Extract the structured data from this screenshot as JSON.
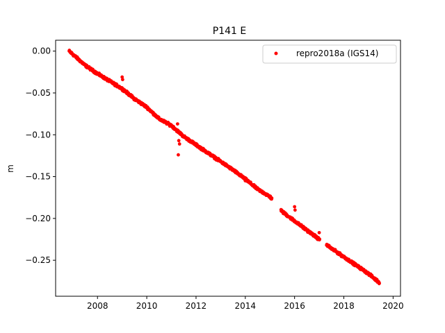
{
  "chart_data": {
    "type": "scatter",
    "title": "P141 E",
    "xlabel": "",
    "ylabel": "m",
    "xlim": [
      2006.3,
      2020.3
    ],
    "ylim": [
      -0.293,
      0.013
    ],
    "xticks": [
      2008,
      2010,
      2012,
      2014,
      2016,
      2018,
      2020
    ],
    "xtick_labels": [
      "2008",
      "2010",
      "2012",
      "2014",
      "2016",
      "2018",
      "2020"
    ],
    "yticks": [
      0.0,
      -0.05,
      -0.1,
      -0.15,
      -0.2,
      -0.25
    ],
    "ytick_labels": [
      "0.00",
      "−0.05",
      "−0.10",
      "−0.15",
      "−0.20",
      "−0.25"
    ],
    "grid": false,
    "legend_position": "top-right",
    "series": [
      {
        "name": "repro2018a (IGS14)",
        "color": "#ff0000",
        "marker": "circle",
        "trend": {
          "x": [
            2006.85,
            2007.5,
            2008.0,
            2008.5,
            2009.0,
            2009.5,
            2010.0,
            2010.5,
            2011.0,
            2011.5,
            2012.0,
            2012.5,
            2013.0,
            2013.5,
            2014.0,
            2014.5,
            2015.0,
            2015.5,
            2016.0,
            2016.5,
            2017.0,
            2017.5,
            2018.0,
            2018.5,
            2019.0,
            2019.45
          ],
          "y": [
            0.0,
            -0.017,
            -0.027,
            -0.036,
            -0.045,
            -0.057,
            -0.067,
            -0.081,
            -0.089,
            -0.102,
            -0.112,
            -0.122,
            -0.132,
            -0.142,
            -0.153,
            -0.165,
            -0.174,
            -0.192,
            -0.203,
            -0.214,
            -0.225,
            -0.236,
            -0.246,
            -0.256,
            -0.266,
            -0.277
          ]
        },
        "gaps": [
          [
            2015.08,
            2015.45
          ],
          [
            2017.02,
            2017.3
          ]
        ],
        "outliers": [
          {
            "x": 2009.0,
            "y": -0.031
          },
          {
            "x": 2009.02,
            "y": -0.034
          },
          {
            "x": 2011.25,
            "y": -0.087
          },
          {
            "x": 2011.28,
            "y": -0.124
          },
          {
            "x": 2011.3,
            "y": -0.107
          },
          {
            "x": 2011.33,
            "y": -0.111
          },
          {
            "x": 2016.0,
            "y": -0.186
          },
          {
            "x": 2016.02,
            "y": -0.19
          },
          {
            "x": 2016.35,
            "y": -0.212
          },
          {
            "x": 2017.0,
            "y": -0.217
          },
          {
            "x": 2014.0,
            "y": -0.155
          }
        ]
      }
    ]
  }
}
